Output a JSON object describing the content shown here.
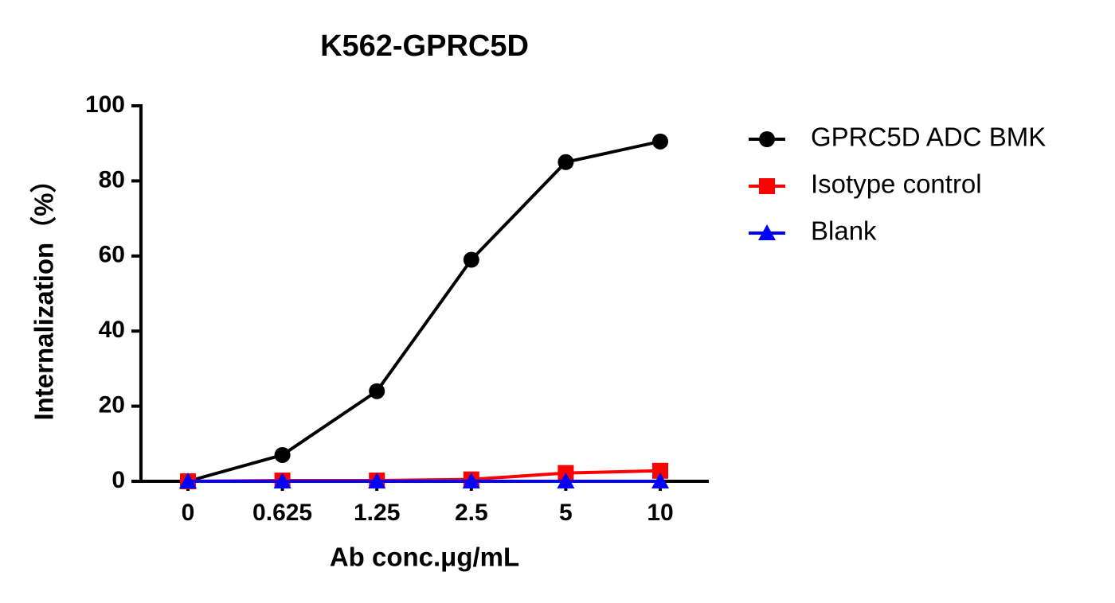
{
  "chart_data": {
    "type": "line",
    "title": "K562-GPRC5D",
    "x_label": "Ab conc.μg/mL",
    "y_label": "Internalization（%）",
    "categories": [
      "0",
      "0.625",
      "1.25",
      "2.5",
      "5",
      "10"
    ],
    "series": [
      {
        "name": "GPRC5D ADC BMK",
        "color": "#000000",
        "marker": "circle",
        "values": [
          0,
          7,
          24,
          59,
          85,
          90.5
        ]
      },
      {
        "name": "Isotype control",
        "color": "#ff0000",
        "marker": "square",
        "values": [
          0,
          0.2,
          0.2,
          0.5,
          2.2,
          2.8
        ]
      },
      {
        "name": "Blank",
        "color": "#0000ff",
        "marker": "triangle",
        "values": [
          0,
          0,
          0,
          0,
          0,
          0
        ]
      }
    ],
    "ylim": [
      0,
      100
    ],
    "yticks": [
      0,
      20,
      40,
      60,
      80,
      100
    ],
    "legend": "right"
  }
}
